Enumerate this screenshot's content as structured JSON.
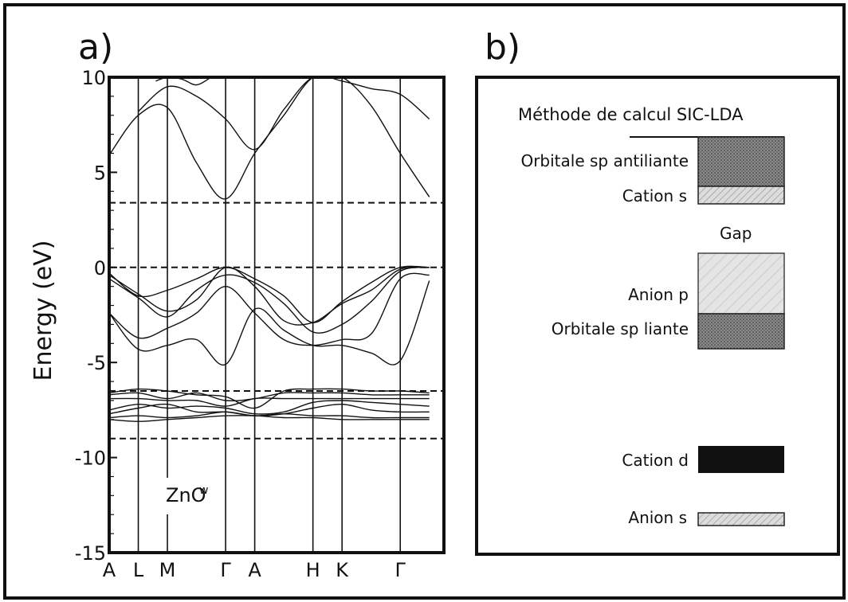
{
  "panel_a": {
    "letter": "a)",
    "compound_label": "ZnO",
    "compound_superscript": "w"
  },
  "panel_b": {
    "letter": "b)",
    "method_title": "Méthode de calcul SIC-LDA",
    "labels": {
      "antibonding": "Orbitale sp antiliante",
      "cation_s": "Cation s",
      "gap": "Gap",
      "anion_p": "Anion p",
      "bonding": "Orbitale sp liante",
      "cation_d": "Cation d",
      "anion_s": "Anion s"
    },
    "pattern_colors": {
      "dense": "#6e6e6e",
      "light": "#c9c9c9",
      "solid": "#111111"
    }
  },
  "chart_data": {
    "type": "line",
    "title": "",
    "xlabel": "",
    "ylabel": "Energy (eV)",
    "ylim": [
      -15,
      10
    ],
    "yticks": [
      10,
      5,
      0,
      -5,
      -10,
      -15
    ],
    "ytick_labels": [
      "10",
      "5",
      "0",
      "-5",
      "-10",
      "-15"
    ],
    "k_path": [
      {
        "label": "A",
        "x": 0
      },
      {
        "label": "L",
        "x": 1
      },
      {
        "label": "M",
        "x": 2
      },
      {
        "label": "Γ",
        "x": 4
      },
      {
        "label": "A",
        "x": 5
      },
      {
        "label": "H",
        "x": 7
      },
      {
        "label": "K",
        "x": 8
      },
      {
        "label": "Γ",
        "x": 10
      }
    ],
    "xlim": [
      0,
      11.5
    ],
    "vertical_lines_at": [
      1,
      2,
      4,
      5,
      7,
      8,
      10
    ],
    "dashed_levels": [
      3.4,
      0,
      -6.5,
      -9
    ],
    "bands": [
      {
        "name": "c1",
        "x": [
          0,
          1,
          2,
          3,
          4,
          5,
          6,
          7,
          8,
          9,
          10,
          11
        ],
        "y": [
          5.9,
          8.0,
          8.4,
          5.5,
          3.6,
          6.0,
          8.0,
          10.0,
          10.0,
          8.5,
          6.0,
          3.7
        ]
      },
      {
        "name": "c2",
        "x": [
          1,
          2,
          3,
          4,
          5,
          6,
          7,
          8,
          9,
          10,
          11
        ],
        "y": [
          8.2,
          9.5,
          9.0,
          7.8,
          6.2,
          8.3,
          10.0,
          9.8,
          9.4,
          9.1,
          7.8
        ]
      },
      {
        "name": "c3",
        "x": [
          1.6,
          2,
          2.5,
          3,
          3.5
        ],
        "y": [
          9.8,
          10.0,
          9.9,
          9.6,
          10.0
        ]
      },
      {
        "name": "v1",
        "x": [
          0,
          1,
          2,
          3,
          4,
          5,
          6,
          7,
          8,
          9,
          10,
          11
        ],
        "y": [
          -0.3,
          -1.5,
          -1.2,
          -0.6,
          0.0,
          -0.6,
          -1.5,
          -2.9,
          -1.8,
          -0.8,
          0.0,
          0.0
        ]
      },
      {
        "name": "v2",
        "x": [
          0,
          1,
          2,
          3,
          4,
          5,
          6,
          7,
          8,
          9,
          10,
          11
        ],
        "y": [
          -0.4,
          -1.4,
          -2.3,
          -1.7,
          0.0,
          -1.0,
          -2.8,
          -2.9,
          -1.9,
          -1.2,
          -0.1,
          0.0
        ]
      },
      {
        "name": "v3",
        "x": [
          0,
          1,
          2,
          3,
          4,
          5,
          6,
          7,
          8,
          9,
          10,
          11
        ],
        "y": [
          -0.6,
          -1.6,
          -2.6,
          -1.2,
          -0.4,
          -0.8,
          -1.9,
          -3.4,
          -3.0,
          -1.8,
          -0.2,
          0.0
        ]
      },
      {
        "name": "v4",
        "x": [
          0,
          1,
          2,
          3,
          4,
          5,
          6,
          7,
          8,
          9,
          10,
          11
        ],
        "y": [
          -2.4,
          -3.7,
          -3.2,
          -2.4,
          -1.0,
          -2.4,
          -3.8,
          -4.1,
          -3.8,
          -3.5,
          -0.6,
          -0.4
        ]
      },
      {
        "name": "v5",
        "x": [
          0,
          1,
          2,
          3,
          4,
          5,
          6,
          7,
          8,
          9,
          10,
          11
        ],
        "y": [
          -2.4,
          -4.3,
          -4.1,
          -3.8,
          -5.1,
          -2.2,
          -3.3,
          -4.1,
          -4.1,
          -4.5,
          -4.9,
          -0.7
        ]
      },
      {
        "name": "d1",
        "x": [
          0,
          1,
          2,
          3,
          4,
          5,
          6,
          7,
          8,
          9,
          10,
          11
        ],
        "y": [
          -6.6,
          -6.4,
          -6.5,
          -6.7,
          -6.8,
          -7.4,
          -6.5,
          -6.4,
          -6.4,
          -6.5,
          -6.5,
          -6.6
        ]
      },
      {
        "name": "d2",
        "x": [
          0,
          1,
          2,
          3,
          4,
          5,
          6,
          7,
          8,
          9,
          10,
          11
        ],
        "y": [
          -6.7,
          -6.6,
          -6.9,
          -6.6,
          -7.0,
          -6.9,
          -6.6,
          -6.6,
          -6.6,
          -6.7,
          -6.7,
          -6.7
        ]
      },
      {
        "name": "d3",
        "x": [
          0,
          1,
          2,
          3,
          4,
          5,
          6,
          7,
          8,
          9,
          10,
          11
        ],
        "y": [
          -6.9,
          -6.9,
          -7.0,
          -7.0,
          -7.3,
          -6.9,
          -6.9,
          -6.9,
          -6.9,
          -6.9,
          -6.9,
          -6.9
        ]
      },
      {
        "name": "d4",
        "x": [
          0,
          1,
          2,
          3,
          4,
          5,
          6,
          7,
          8,
          9,
          10,
          11
        ],
        "y": [
          -7.5,
          -7.2,
          -7.4,
          -7.3,
          -7.4,
          -7.7,
          -7.6,
          -7.1,
          -7.0,
          -7.1,
          -7.2,
          -7.3
        ]
      },
      {
        "name": "d5",
        "x": [
          0,
          1,
          2,
          3,
          4,
          5,
          6,
          7,
          8,
          9,
          10,
          11
        ],
        "y": [
          -7.7,
          -7.4,
          -7.2,
          -7.6,
          -7.6,
          -7.8,
          -7.7,
          -7.4,
          -7.2,
          -7.5,
          -7.6,
          -7.6
        ]
      },
      {
        "name": "d6",
        "x": [
          0,
          1,
          2,
          3,
          4,
          5,
          6,
          7,
          8,
          9,
          10,
          11
        ],
        "y": [
          -7.9,
          -7.8,
          -7.9,
          -7.8,
          -7.6,
          -7.8,
          -7.7,
          -7.8,
          -7.8,
          -7.9,
          -7.9,
          -7.9
        ]
      },
      {
        "name": "d7",
        "x": [
          0,
          1,
          2,
          3,
          4,
          5,
          6,
          7,
          8,
          9,
          10,
          11
        ],
        "y": [
          -8.0,
          -8.1,
          -8.0,
          -7.9,
          -7.8,
          -7.8,
          -7.9,
          -7.9,
          -8.0,
          -8.0,
          -8.0,
          -8.0
        ]
      }
    ]
  }
}
